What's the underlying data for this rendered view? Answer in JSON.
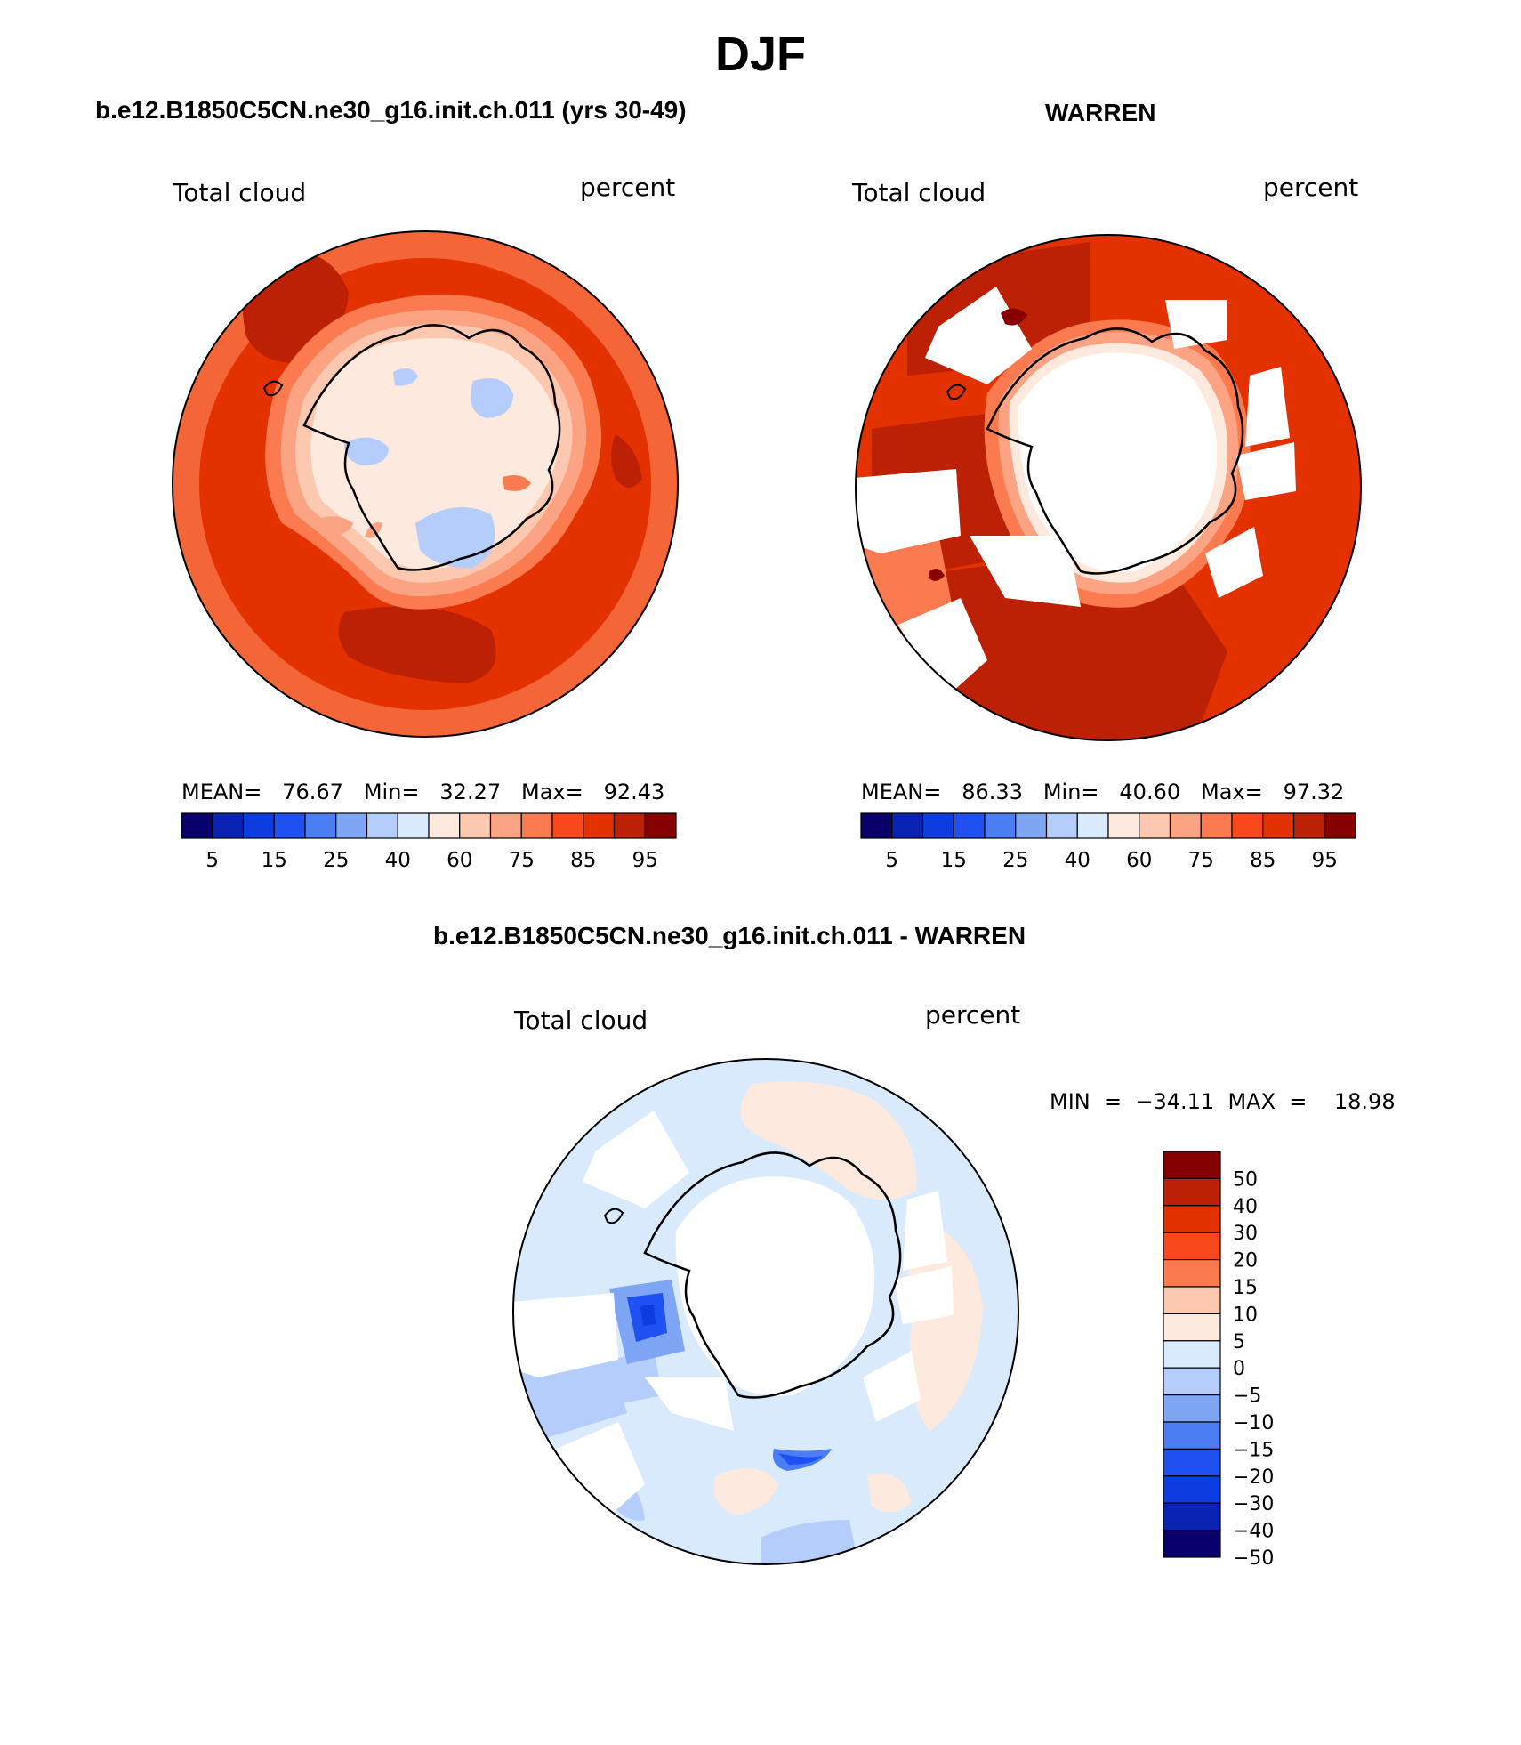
{
  "figure_title": "DJF",
  "panel_left": {
    "title": "b.e12.B1850C5CN.ne30_g16.init.ch.011 (yrs 30-49)",
    "variable": "Total cloud",
    "units": "percent",
    "stats": "MEAN=   76.67   Min=   32.27   Max=   92.43"
  },
  "panel_right": {
    "title": "WARREN",
    "variable": "Total cloud",
    "units": "percent",
    "stats": "MEAN=   86.33   Min=   40.60   Max=   97.32"
  },
  "panel_diff": {
    "title": "b.e12.B1850C5CN.ne30_g16.init.ch.011 - WARREN",
    "variable": "Total cloud",
    "units": "percent",
    "stats": "MIN  =  −34.11  MAX  =    18.98"
  },
  "colorbar_abs": {
    "colors": [
      "#08006b",
      "#0a23b4",
      "#0d3ce0",
      "#1e50f2",
      "#4b7ef5",
      "#7fa5f5",
      "#b5cdfb",
      "#daeafd",
      "#fde9dd",
      "#fcc8b0",
      "#fba382",
      "#fb7a4f",
      "#f9481c",
      "#e33200",
      "#bc2005",
      "#870000"
    ],
    "tick_labels": [
      "5",
      "15",
      "25",
      "40",
      "60",
      "75",
      "85",
      "95"
    ]
  },
  "colorbar_diff": {
    "colors": [
      "#870000",
      "#bc2005",
      "#e33200",
      "#f9481c",
      "#fb7a4f",
      "#fcc8b0",
      "#fde9dd",
      "#daeafd",
      "#b5cdfb",
      "#7fa5f5",
      "#4b7ef5",
      "#1e50f2",
      "#0d3ce0",
      "#0a23b4",
      "#08006b"
    ],
    "tick_labels": [
      "50",
      "40",
      "30",
      "20",
      "15",
      "10",
      "5",
      "0",
      "−5",
      "−10",
      "−15",
      "−20",
      "−30",
      "−40",
      "−50"
    ]
  }
}
